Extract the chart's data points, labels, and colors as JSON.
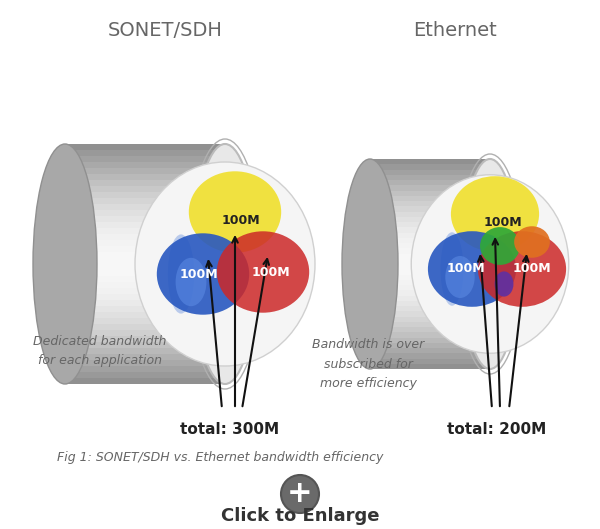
{
  "bg_color": "#ffffff",
  "title_sonet": "SONET/SDH",
  "title_ethernet": "Ethernet",
  "label_100m": "100M",
  "label_total_sonet": "total: 300M",
  "label_total_ethernet": "total: 200M",
  "caption": "Fig 1: SONET/SDH vs. Ethernet bandwidth efficiency",
  "desc_sonet": "Dedicated bandwidth\nfor each application",
  "desc_ethernet": "Bandwidth is over\nsubscribed for\nmore efficiency",
  "click_text": "Click to Enlarge",
  "yellow_color": "#f0e030",
  "blue_color": "#2858c0",
  "red_color": "#cc2828",
  "green_color": "#30a838",
  "purple_color": "#6030a0",
  "orange_color": "#e07020",
  "arrow_color": "#111111",
  "title_fontsize": 14,
  "label_fontsize": 9,
  "total_fontsize": 11,
  "caption_fontsize": 9,
  "desc_fontsize": 9,
  "click_fontsize": 13,
  "title_color": "#666666",
  "desc_color": "#666666",
  "total_color": "#222222",
  "caption_color": "#666666"
}
